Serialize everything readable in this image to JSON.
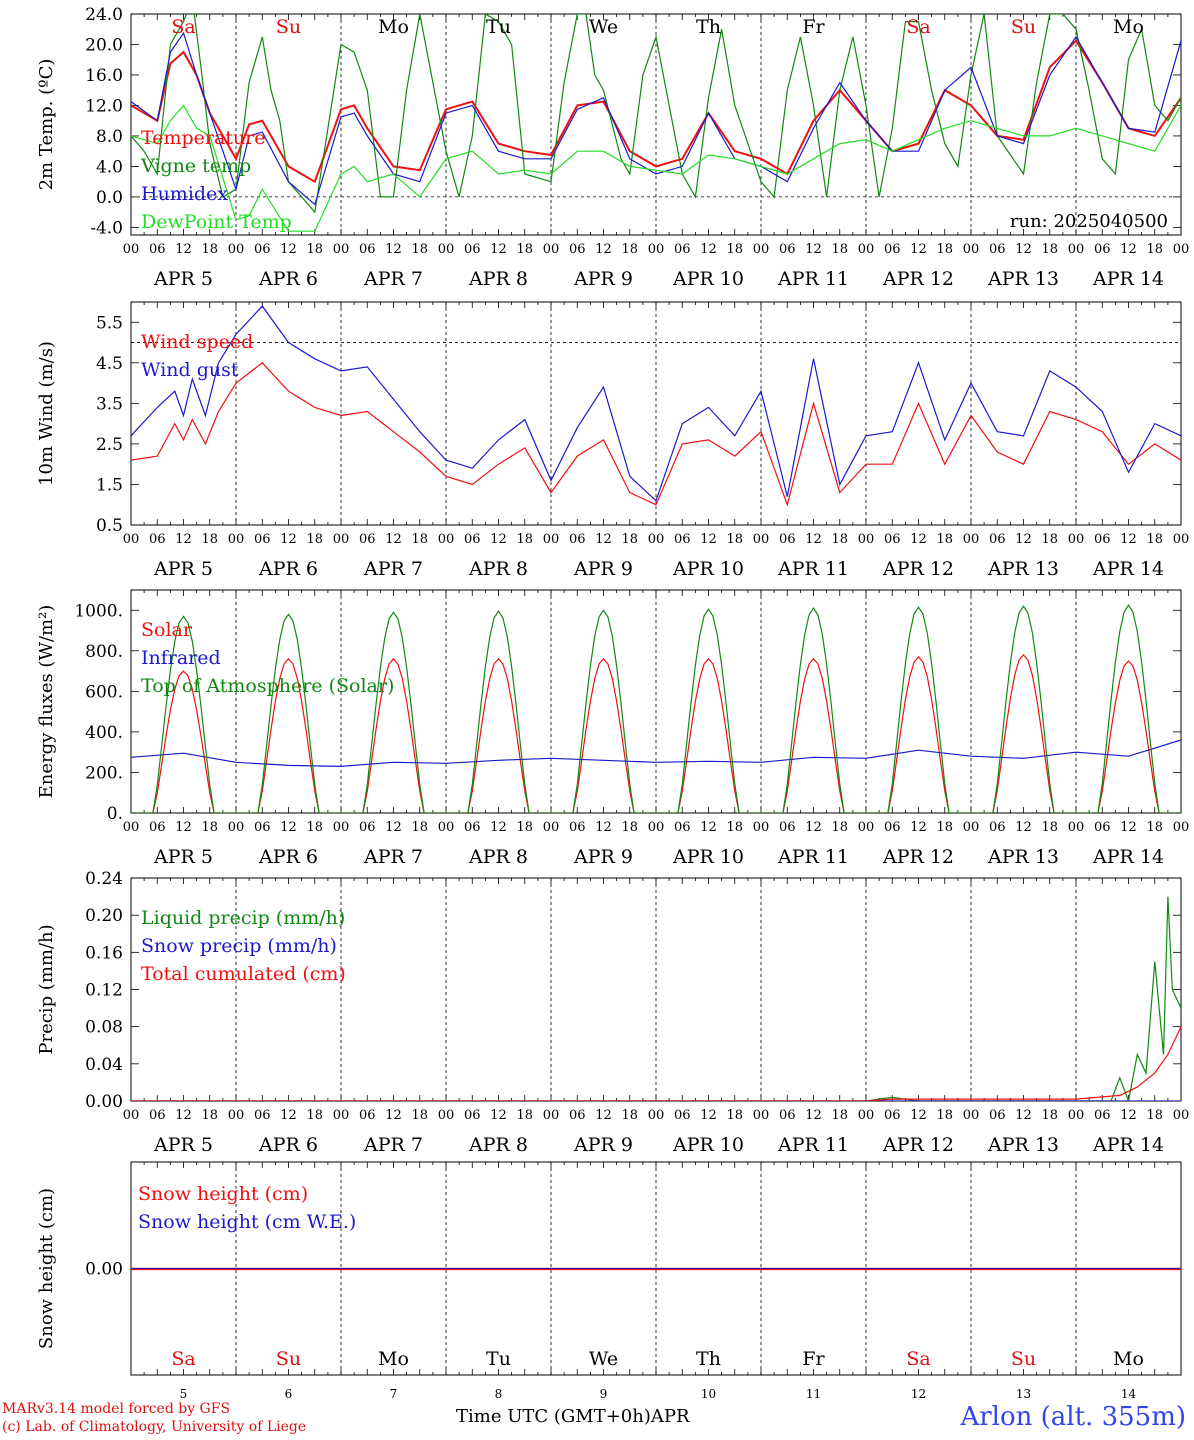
{
  "colors": {
    "red": "#ee1111",
    "green": "#118811",
    "blue": "#1a1acc",
    "lime": "#22dd22",
    "weekend": "#dd1111",
    "weekday": "#000000",
    "title": "#3344ee"
  },
  "days": {
    "names": [
      "Sa",
      "Su",
      "Mo",
      "Tu",
      "We",
      "Th",
      "Fr",
      "Sa",
      "Su",
      "Mo"
    ],
    "weekend": [
      true,
      true,
      false,
      false,
      false,
      false,
      false,
      true,
      true,
      false
    ],
    "dates": [
      "APR  5",
      "APR  6",
      "APR  7",
      "APR  8",
      "APR  9",
      "APR 10",
      "APR 11",
      "APR 12",
      "APR 13",
      "APR 14"
    ],
    "numbers": [
      "5",
      "6",
      "7",
      "8",
      "9",
      "10",
      "11",
      "12",
      "13",
      "14"
    ],
    "hour_labels": [
      "00",
      "06",
      "12",
      "18"
    ],
    "end_label": "00"
  },
  "footer": {
    "credit_line1": "MARv3.14 model forced by GFS",
    "credit_line2": "(c) Lab. of Climatology, University of Liege",
    "xlabel": "Time UTC (GMT+0h)",
    "month": "APR",
    "station": "Arlon (alt. 355m)"
  },
  "chart_data": [
    {
      "type": "line",
      "ylabel": "2m Temp. (ºC)",
      "ylim": [
        -5,
        24
      ],
      "yticks": [
        "-4.0",
        "0.0",
        "4.0",
        "8.0",
        "12.0",
        "16.0",
        "20.0",
        "24.0"
      ],
      "ytick_values": [
        -4,
        0,
        4,
        8,
        12,
        16,
        20,
        24
      ],
      "hline": 0,
      "annotation": "run: 2025040500",
      "x_unit": "hours since APR 5 00 UTC",
      "series": [
        {
          "name": "Temperature",
          "color": "red",
          "x": [
            0,
            6,
            9,
            12,
            15,
            18,
            24,
            27,
            30,
            36,
            42,
            48,
            51,
            54,
            60,
            66,
            72,
            78,
            84,
            90,
            96,
            102,
            108,
            114,
            120,
            126,
            132,
            138,
            144,
            150,
            156,
            162,
            168,
            174,
            180,
            186,
            192,
            198,
            204,
            210,
            216,
            222,
            228,
            234,
            240
          ],
          "y": [
            12,
            10,
            17.5,
            19,
            16,
            11,
            5,
            9.5,
            10,
            4,
            2,
            11.5,
            12,
            9,
            4,
            3.5,
            11.5,
            12.5,
            7,
            6,
            5.5,
            12,
            12.5,
            6,
            4,
            5,
            11,
            6,
            5,
            3,
            10,
            14,
            10,
            6,
            7,
            14,
            12,
            8,
            7.5,
            17,
            20.5,
            15,
            9,
            8,
            13
          ]
        },
        {
          "name": "Vigne temp",
          "color": "green",
          "x": [
            0,
            3,
            6,
            9,
            12,
            14,
            16,
            18,
            21,
            24,
            27,
            30,
            32,
            34,
            36,
            42,
            48,
            51,
            54,
            57,
            60,
            63,
            66,
            72,
            75,
            78,
            81,
            84,
            87,
            90,
            96,
            99,
            102,
            104,
            106,
            108,
            112,
            114,
            117,
            120,
            126,
            129,
            132,
            135,
            138,
            144,
            147,
            150,
            153,
            156,
            159,
            162,
            165,
            168,
            171,
            174,
            177,
            180,
            183,
            186,
            189,
            192,
            195,
            198,
            204,
            207,
            210,
            213,
            216,
            219,
            222,
            225,
            228,
            231,
            234,
            237,
            240
          ],
          "y": [
            8,
            6,
            3,
            20,
            23,
            26,
            17,
            7,
            0,
            1,
            15,
            21,
            14,
            10,
            2,
            -2,
            20,
            19,
            14,
            0,
            0,
            14,
            24,
            6,
            0,
            8,
            24,
            23,
            20,
            3,
            2,
            15,
            24,
            24,
            16,
            14,
            5,
            3,
            16,
            21,
            3,
            0,
            13,
            22,
            12,
            2,
            0,
            14,
            21,
            12,
            0,
            14,
            21,
            12,
            0,
            9,
            23,
            23,
            14,
            7,
            4,
            16,
            24,
            8,
            3,
            15,
            24,
            24,
            22,
            14,
            5,
            3,
            18,
            22,
            12,
            10,
            13
          ]
        },
        {
          "name": "Humidex",
          "color": "blue",
          "x": [
            0,
            6,
            9,
            12,
            15,
            18,
            24,
            27,
            30,
            36,
            42,
            48,
            51,
            54,
            60,
            66,
            72,
            78,
            84,
            90,
            96,
            102,
            108,
            114,
            120,
            126,
            132,
            138,
            144,
            150,
            156,
            162,
            168,
            174,
            180,
            186,
            192,
            198,
            204,
            210,
            216,
            222,
            228,
            234,
            240
          ],
          "y": [
            12.5,
            10,
            19,
            21.5,
            16,
            11,
            1,
            8,
            8.5,
            2,
            -1,
            10.5,
            11,
            8,
            3,
            2,
            11,
            12,
            6,
            5,
            5,
            11.5,
            13,
            5,
            3,
            4,
            11,
            5,
            4,
            2,
            9,
            15,
            10,
            6,
            6,
            14,
            17,
            8,
            7,
            16,
            21,
            15,
            9,
            8.5,
            20.5
          ]
        },
        {
          "name": "DewPoint Temp",
          "color": "lime",
          "x": [
            0,
            6,
            9,
            12,
            15,
            18,
            24,
            27,
            30,
            36,
            42,
            48,
            51,
            54,
            60,
            66,
            72,
            78,
            84,
            90,
            96,
            102,
            108,
            114,
            120,
            126,
            132,
            138,
            144,
            150,
            156,
            162,
            168,
            174,
            180,
            186,
            192,
            198,
            204,
            210,
            216,
            222,
            228,
            234,
            240
          ],
          "y": [
            8,
            7,
            10,
            12,
            9,
            8,
            -3,
            -2.5,
            1,
            -4.5,
            -4.5,
            3,
            4,
            2,
            3,
            0,
            5,
            6,
            3,
            3.5,
            3,
            6,
            6,
            4,
            3.5,
            3,
            5.5,
            5,
            4,
            3,
            5,
            7,
            7.5,
            6,
            7.5,
            9,
            10,
            9,
            8,
            8,
            9,
            8,
            7,
            6,
            12
          ]
        }
      ],
      "legend": [
        "Temperature",
        "Vigne temp",
        "Humidex",
        "DewPoint Temp"
      ]
    },
    {
      "type": "line",
      "ylabel": "10m Wind (m/s)",
      "ylim": [
        0.5,
        6
      ],
      "yticks": [
        "0.5",
        "1.5",
        "2.5",
        "3.5",
        "4.5",
        "5.5"
      ],
      "ytick_values": [
        0.5,
        1.5,
        2.5,
        3.5,
        4.5,
        5.5
      ],
      "hline": 5,
      "series": [
        {
          "name": "Wind speed",
          "color": "red",
          "x": [
            0,
            6,
            10,
            12,
            14,
            17,
            20,
            24,
            30,
            36,
            42,
            48,
            54,
            60,
            66,
            72,
            78,
            84,
            90,
            96,
            102,
            108,
            114,
            120,
            126,
            132,
            138,
            144,
            150,
            156,
            162,
            168,
            174,
            180,
            186,
            192,
            198,
            204,
            210,
            216,
            222,
            228,
            234,
            240
          ],
          "y": [
            2.1,
            2.2,
            3,
            2.6,
            3.1,
            2.5,
            3.3,
            4,
            4.5,
            3.8,
            3.4,
            3.2,
            3.3,
            2.8,
            2.3,
            1.7,
            1.5,
            2.0,
            2.4,
            1.3,
            2.2,
            2.6,
            1.3,
            1.0,
            2.5,
            2.6,
            2.2,
            2.8,
            1.0,
            3.5,
            1.3,
            2.0,
            2.0,
            3.5,
            2.0,
            3.2,
            2.3,
            2.0,
            3.3,
            3.1,
            2.8,
            2.0,
            2.5,
            2.1
          ]
        },
        {
          "name": "Wind gust",
          "color": "blue",
          "x": [
            0,
            6,
            10,
            12,
            14,
            17,
            20,
            24,
            30,
            36,
            42,
            48,
            54,
            60,
            66,
            72,
            78,
            84,
            90,
            96,
            102,
            108,
            114,
            120,
            126,
            132,
            138,
            144,
            150,
            156,
            162,
            168,
            174,
            180,
            186,
            192,
            198,
            204,
            210,
            216,
            222,
            228,
            234,
            240
          ],
          "y": [
            2.7,
            3.4,
            3.8,
            3.2,
            4.1,
            3.2,
            4.5,
            5.2,
            5.9,
            5,
            4.6,
            4.3,
            4.4,
            3.6,
            2.8,
            2.1,
            1.9,
            2.6,
            3.1,
            1.6,
            2.9,
            3.9,
            1.7,
            1.1,
            3.0,
            3.4,
            2.7,
            3.8,
            1.2,
            4.6,
            1.5,
            2.7,
            2.8,
            4.5,
            2.6,
            4.0,
            2.8,
            2.7,
            4.3,
            3.9,
            3.3,
            1.8,
            3.0,
            2.7
          ]
        }
      ],
      "legend": [
        "Wind speed",
        "Wind gust"
      ]
    },
    {
      "type": "line",
      "ylabel": "Energy fluxes (W/m²)",
      "ylim": [
        0,
        1100
      ],
      "yticks": [
        "0.",
        "200.",
        "400.",
        "600.",
        "800.",
        "1000."
      ],
      "ytick_values": [
        0,
        200,
        400,
        600,
        800,
        1000
      ],
      "series": [
        {
          "name": "Solar",
          "color": "red",
          "daily_peak": [
            700,
            760,
            760,
            760,
            760,
            760,
            760,
            770,
            780,
            750
          ]
        },
        {
          "name": "Infrared",
          "color": "blue",
          "x": [
            0,
            12,
            24,
            36,
            48,
            60,
            72,
            84,
            96,
            108,
            120,
            132,
            144,
            156,
            168,
            180,
            192,
            204,
            216,
            228,
            240
          ],
          "y": [
            275,
            295,
            250,
            235,
            230,
            250,
            245,
            260,
            270,
            260,
            250,
            255,
            250,
            275,
            270,
            310,
            280,
            270,
            300,
            280,
            360
          ]
        },
        {
          "name": "Top of Atmosphere (Solar)",
          "color": "green",
          "daily_peak": [
            970,
            980,
            990,
            995,
            1000,
            1005,
            1010,
            1015,
            1020,
            1025
          ]
        }
      ],
      "legend": [
        "Solar",
        "Infrared",
        "Top of Atmosphere (Solar)"
      ]
    },
    {
      "type": "line",
      "ylabel": "Precip (mm/h)",
      "ylim": [
        0,
        0.24
      ],
      "yticks": [
        "0.00",
        "0.04",
        "0.08",
        "0.12",
        "0.16",
        "0.20",
        "0.24"
      ],
      "ytick_values": [
        0,
        0.04,
        0.08,
        0.12,
        0.16,
        0.2,
        0.24
      ],
      "series": [
        {
          "name": "Liquid precip (mm/h)",
          "color": "green",
          "x": [
            0,
            168,
            174,
            180,
            216,
            224,
            226,
            228,
            230,
            232,
            234,
            236,
            237,
            238,
            240
          ],
          "y": [
            0,
            0,
            0.004,
            0,
            0,
            0,
            0.025,
            0,
            0.05,
            0.03,
            0.15,
            0.05,
            0.22,
            0.12,
            0.1
          ]
        },
        {
          "name": "Snow precip (mm/h)",
          "color": "blue",
          "x": [
            0,
            240
          ],
          "y": [
            0,
            0
          ]
        },
        {
          "name": "Total cumulated (cm)",
          "color": "red",
          "x": [
            0,
            168,
            174,
            216,
            226,
            230,
            234,
            237,
            240
          ],
          "y": [
            0,
            0,
            0.002,
            0.002,
            0.006,
            0.015,
            0.03,
            0.05,
            0.08
          ]
        }
      ],
      "legend": [
        "Liquid precip (mm/h)",
        "Snow precip (mm/h)",
        "Total cumulated (cm)"
      ]
    },
    {
      "type": "line",
      "ylabel": "Snow height (cm)",
      "yticks": [
        "0.00"
      ],
      "ytick_values": [
        0
      ],
      "series": [
        {
          "name": "Snow height (cm)",
          "color": "red",
          "x": [
            0,
            240
          ],
          "y": [
            0,
            0
          ]
        },
        {
          "name": "Snow height (cm W.E.)",
          "color": "blue",
          "x": [
            0,
            240
          ],
          "y": [
            0,
            0
          ]
        }
      ],
      "legend": [
        "Snow height (cm)",
        "Snow height (cm W.E.)"
      ]
    }
  ]
}
